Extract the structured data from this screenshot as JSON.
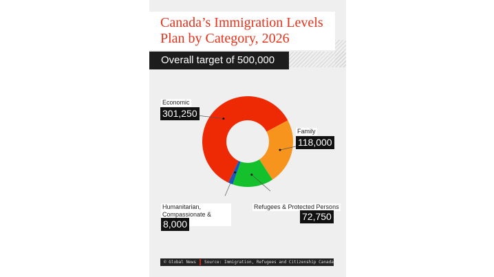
{
  "title": "Canada’s Immigration Levels Plan by Category, 2026",
  "subtitle": "Overall target of 500,000",
  "footer": {
    "credit": "© Global News",
    "source": "Source: Immigration, Refugees and Citizenship Canada"
  },
  "chart_data": {
    "type": "pie",
    "donut": true,
    "title": "Canada’s Immigration Levels Plan by Category, 2026",
    "total": 500000,
    "slices": [
      {
        "label": "Family",
        "value": 118000,
        "display": "118,000",
        "color": "#f7941d"
      },
      {
        "label": "Refugees & Protected Persons",
        "value": 72750,
        "display": "72,750",
        "color": "#14c02c"
      },
      {
        "label": "Humanitarian, Compassionate & Others",
        "value": 8000,
        "display": "8,000",
        "color": "#1456c8"
      },
      {
        "label": "Economic",
        "value": 301250,
        "display": "301,250",
        "color": "#ee2a04"
      }
    ]
  }
}
